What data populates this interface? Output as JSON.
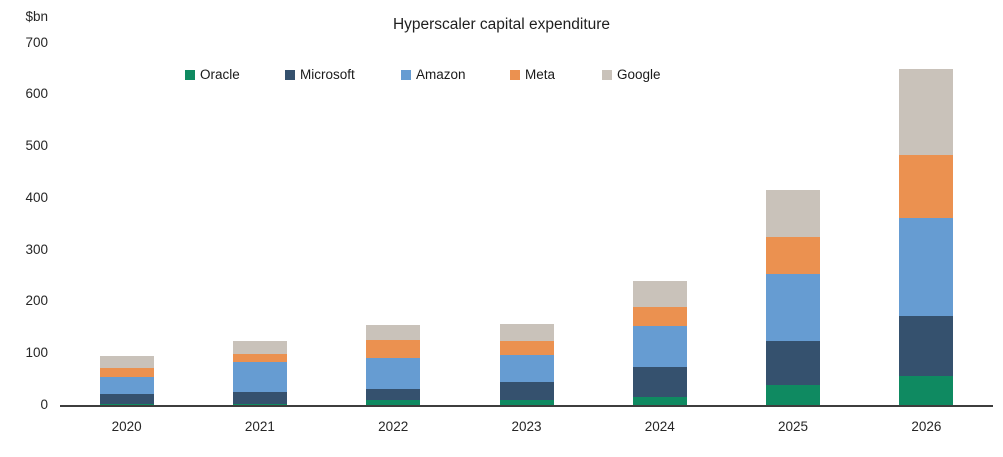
{
  "title": "Hyperscaler capital expenditure",
  "unit_label": "$bn",
  "chart_data": {
    "type": "bar",
    "stacked": true,
    "title": "Hyperscaler capital expenditure",
    "ylabel": "$bn",
    "ylim": [
      0,
      700
    ],
    "yticks": [
      0,
      100,
      200,
      300,
      400,
      500,
      600,
      700
    ],
    "grid": false,
    "legend_position": "top",
    "categories": [
      "2020",
      "2021",
      "2022",
      "2023",
      "2024",
      "2025",
      "2026"
    ],
    "series": [
      {
        "name": "Oracle",
        "color": "#0f8a61",
        "values": [
          2,
          2,
          9,
          9,
          16,
          38,
          56
        ]
      },
      {
        "name": "Microsoft",
        "color": "#35516e",
        "values": [
          19,
          23,
          22,
          36,
          57,
          86,
          116
        ]
      },
      {
        "name": "Amazon",
        "color": "#669cd2",
        "values": [
          33,
          58,
          60,
          52,
          80,
          129,
          189
        ]
      },
      {
        "name": "Meta",
        "color": "#eb9150",
        "values": [
          17,
          16,
          34,
          26,
          36,
          72,
          122
        ]
      },
      {
        "name": "Google",
        "color": "#c9c2ba",
        "values": [
          24,
          24,
          29,
          33,
          51,
          90,
          166
        ]
      }
    ],
    "totals": [
      95,
      123,
      154,
      156,
      240,
      415,
      649
    ]
  }
}
